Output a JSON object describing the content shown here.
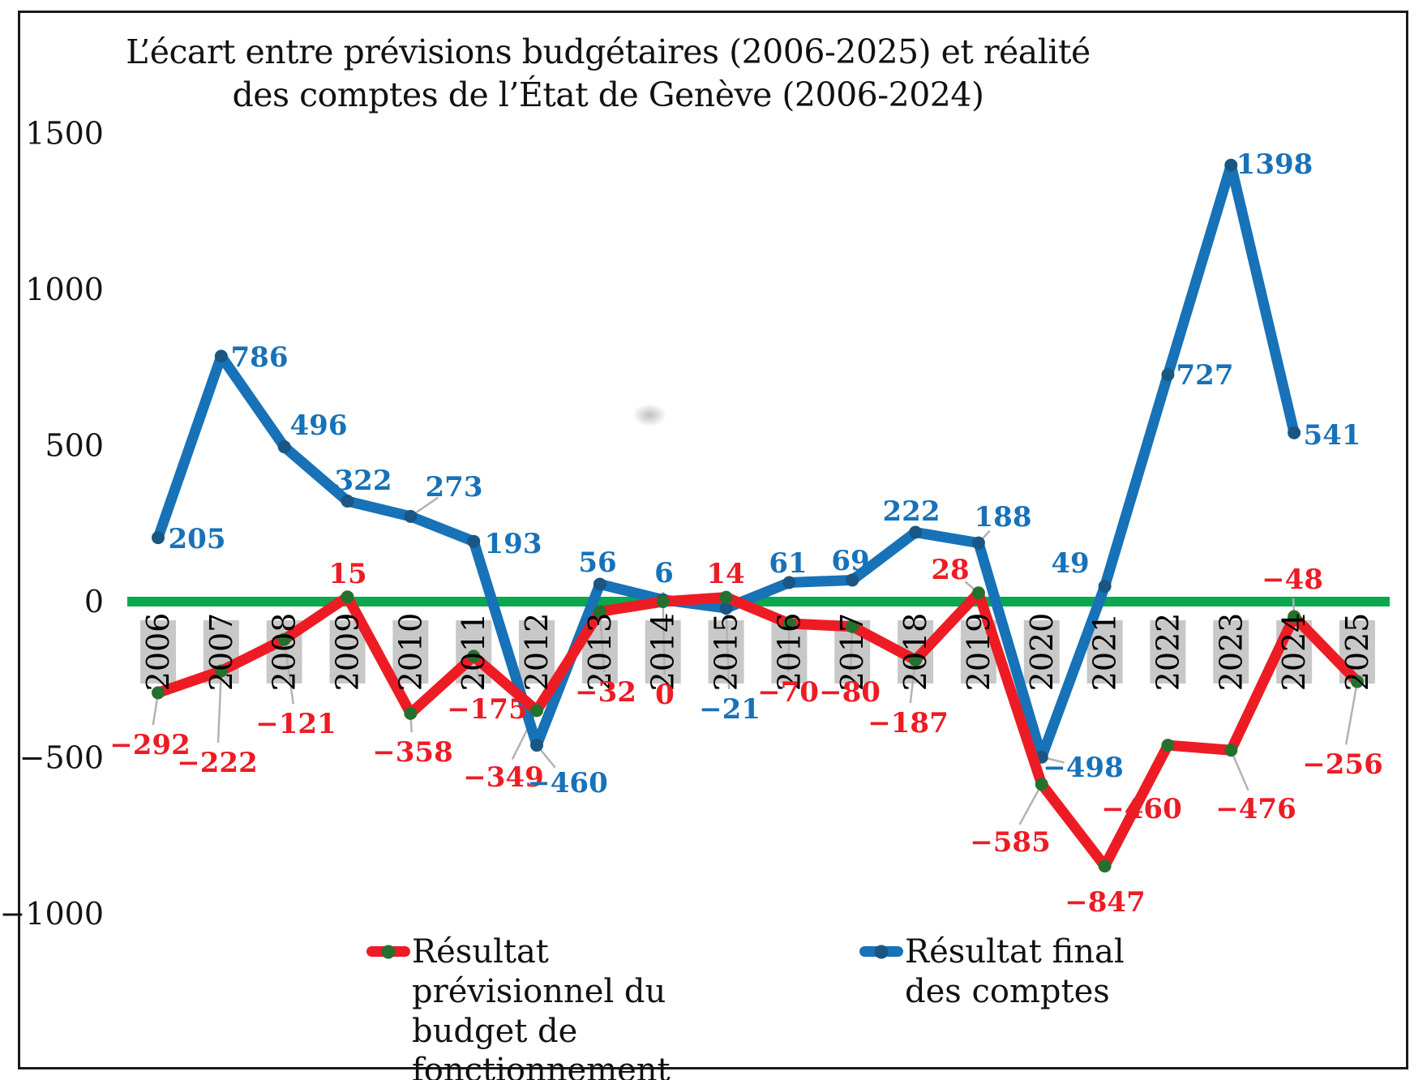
{
  "title": "L’écart entre prévisions budgétaires (2006-2025) et réalité des comptes de l’État de Genève (2006-2024)",
  "chart_data": {
    "type": "line",
    "title": "L’écart entre prévisions budgétaires (2006-2025) et réalité des comptes de l’État de Genève (2006-2024)",
    "categories": [
      2006,
      2007,
      2008,
      2009,
      2010,
      2011,
      2012,
      2013,
      2014,
      2015,
      2016,
      2017,
      2018,
      2019,
      2020,
      2021,
      2022,
      2023,
      2024,
      2025
    ],
    "series": [
      {
        "name": "Résultat prévisionnel du budget de fonctionnement",
        "color": "#ed1c24",
        "marker_color": "#26702f",
        "values": [
          -292,
          -222,
          -121,
          15,
          -358,
          -175,
          -349,
          -32,
          0,
          14,
          -70,
          -80,
          -187,
          28,
          -585,
          -847,
          -460,
          -476,
          -48,
          -256
        ]
      },
      {
        "name": "Résultat final des comptes",
        "color": "#1772b8",
        "marker_color": "#1a5683",
        "values": [
          205,
          786,
          496,
          322,
          273,
          193,
          -460,
          56,
          6,
          -21,
          61,
          69,
          222,
          188,
          -498,
          49,
          727,
          1398,
          541,
          null
        ]
      }
    ],
    "yticks": [
      1500,
      1000,
      500,
      0,
      -500,
      -1000
    ],
    "ylim": [
      -1000,
      1500
    ],
    "grid": false,
    "zero_line_color": "#09a84e",
    "x_label_bg": "#c8c8c8",
    "leader_line_color": "#b2b2b2",
    "legend_position": "bottom"
  }
}
